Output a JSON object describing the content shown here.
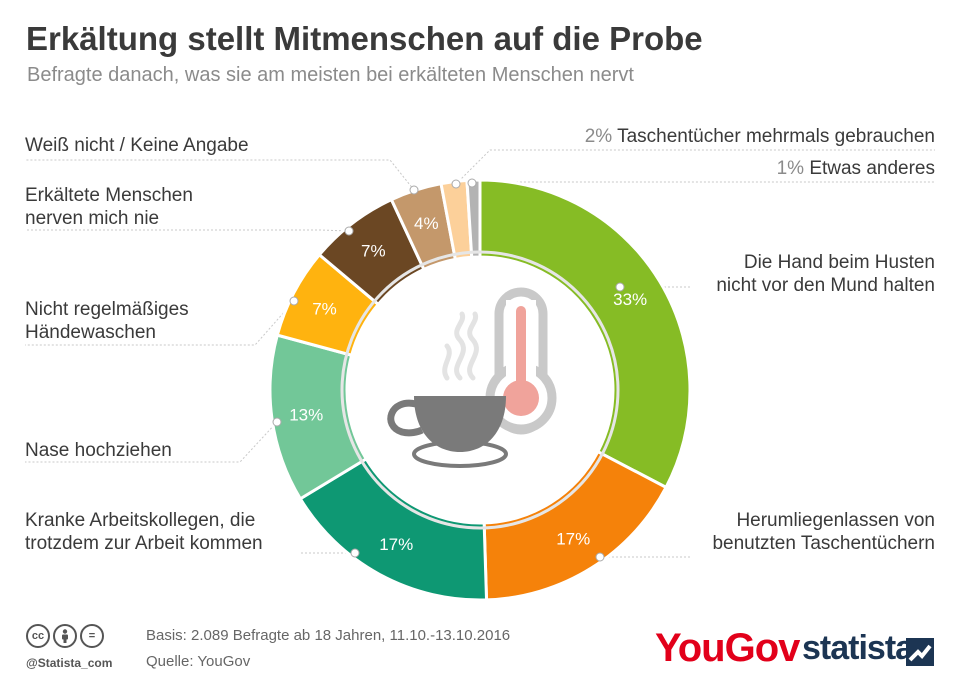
{
  "title": "Erkältung stellt Mitmenschen auf die Probe",
  "subtitle": "Befragte danach, was sie am meisten bei erkälteten Menschen nervt",
  "chart_data": {
    "type": "pie",
    "title": "Erkältung stellt Mitmenschen auf die Probe",
    "subtitle": "Befragte danach, was sie am meisten bei erkälteten Menschen nervt",
    "slices": [
      {
        "key": "hand",
        "label_lines": [
          "Die Hand beim Husten",
          "nicht vor den Mund halten"
        ],
        "value": 33,
        "value_label": "33%",
        "color": "#86bc25"
      },
      {
        "key": "taschen",
        "label_lines": [
          "Herumliegenlassen von",
          "benutzten Taschentüchern"
        ],
        "value": 17,
        "value_label": "17%",
        "color": "#f5820a"
      },
      {
        "key": "kollegen",
        "label_lines": [
          "Kranke Arbeitskollegen, die",
          "trotzdem zur Arbeit kommen"
        ],
        "value": 17,
        "value_label": "17%",
        "color": "#0e9873"
      },
      {
        "key": "nase",
        "label_lines": [
          "Nase hochziehen"
        ],
        "value": 13,
        "value_label": "13%",
        "color": "#72c798"
      },
      {
        "key": "haende",
        "label_lines": [
          "Nicht regelmäßiges",
          "Händewaschen"
        ],
        "value": 7,
        "value_label": "7%",
        "color": "#ffb30f"
      },
      {
        "key": "nie",
        "label_lines": [
          "Erkältete Menschen",
          "nerven mich nie"
        ],
        "value": 7,
        "value_label": "7%",
        "color": "#6b4723"
      },
      {
        "key": "weiss",
        "label_lines": [
          "Weiß nicht / Keine Angabe"
        ],
        "value": 4,
        "value_label": "4%",
        "color": "#c4986b"
      },
      {
        "key": "mehrmals",
        "label_lines": [
          "Taschentücher mehrmals gebrauchen"
        ],
        "value": 2,
        "value_label": "2%",
        "color": "#fcd09a"
      },
      {
        "key": "anderes",
        "label_lines": [
          "Etwas anderes"
        ],
        "value": 1,
        "value_label": "1%",
        "color": "#b3b3b3"
      }
    ]
  },
  "footer": {
    "basis": "Basis: 2.089 Befragte ab 18 Jahren, 11.10.-13.10.2016",
    "quelle": "Quelle: YouGov",
    "handle": "@Statista_com",
    "cc_icons": [
      "cc",
      "by",
      "="
    ],
    "yougov_logo": "YouGov",
    "statista_logo": "statista"
  },
  "icons": [
    "coffee-cup-icon",
    "thermometer-icon",
    "steam-icon"
  ]
}
